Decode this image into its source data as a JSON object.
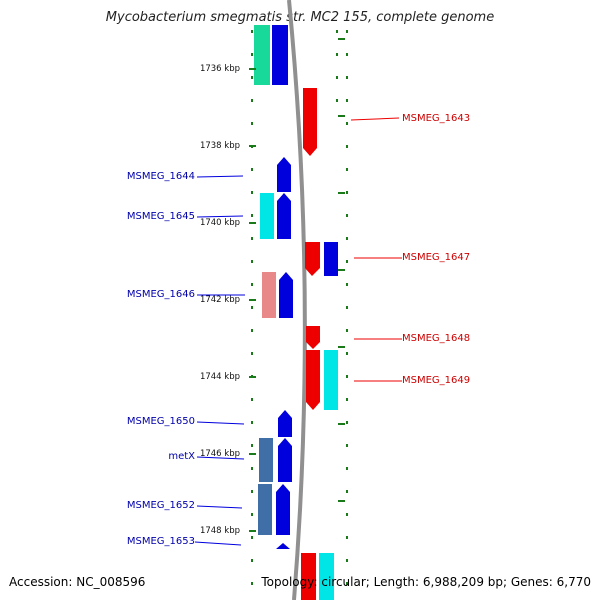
{
  "title": "Mycobacterium smegmatis str. MC2 155, complete genome",
  "footer": {
    "accession": "Accession: NC_008596",
    "summary": "Topology: circular; Length: 6,988,209 bp; Genes: 6,770"
  },
  "ruler": {
    "unit": "kbp",
    "ticks": [
      {
        "label": "1736 kbp",
        "kbp": 1736
      },
      {
        "label": "1738 kbp",
        "kbp": 1738
      },
      {
        "label": "1740 kbp",
        "kbp": 1740
      },
      {
        "label": "1742 kbp",
        "kbp": 1742
      },
      {
        "label": "1744 kbp",
        "kbp": 1744
      },
      {
        "label": "1746 kbp",
        "kbp": 1746
      },
      {
        "label": "1748 kbp",
        "kbp": 1748
      }
    ]
  },
  "colors": {
    "minus_strand_gene": "#0000dd",
    "plus_strand_gene": "#ee0000",
    "cyan_feature": "#00e5e5",
    "pink_feature": "#e88888",
    "steel_feature": "#3f6fa6",
    "green_feature": "#19d99a",
    "dots": "#1a7a1a",
    "backbone": "#909090"
  },
  "minus_labels": [
    "MSMEG_1644",
    "MSMEG_1645",
    "MSMEG_1646",
    "MSMEG_1650",
    "metX",
    "MSMEG_1652",
    "MSMEG_1653"
  ],
  "plus_labels": [
    "MSMEG_1643",
    "MSMEG_1647",
    "MSMEG_1648",
    "MSMEG_1649"
  ]
}
